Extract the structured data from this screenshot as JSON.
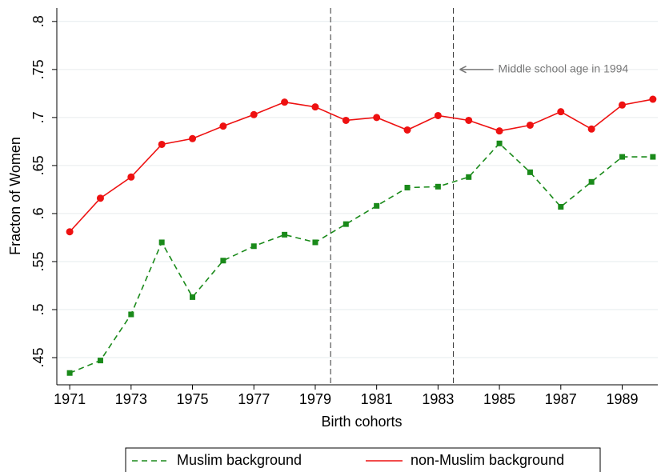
{
  "chart_data": {
    "type": "line",
    "x": [
      1971,
      1972,
      1973,
      1974,
      1975,
      1976,
      1977,
      1978,
      1979,
      1980,
      1981,
      1982,
      1983,
      1984,
      1985,
      1986,
      1987,
      1988,
      1989,
      1990
    ],
    "series": [
      {
        "name": "Muslim background",
        "color": "#1a8a1a",
        "dash": true,
        "marker": "square",
        "values": [
          0.434,
          0.447,
          0.495,
          0.57,
          0.513,
          0.551,
          0.566,
          0.578,
          0.57,
          0.589,
          0.608,
          0.627,
          0.628,
          0.638,
          0.673,
          0.643,
          0.607,
          0.633,
          0.659,
          0.659
        ]
      },
      {
        "name": "non-Muslim background",
        "color": "#ee1111",
        "dash": false,
        "marker": "circle",
        "values": [
          0.581,
          0.616,
          0.638,
          0.672,
          0.678,
          0.691,
          0.703,
          0.716,
          0.711,
          0.697,
          0.7,
          0.687,
          0.702,
          0.697,
          0.686,
          0.692,
          0.706,
          0.688,
          0.713,
          0.719
        ]
      }
    ],
    "x_label": "Birth cohorts",
    "y_label": "Fracton of Women",
    "xlim": [
      1970.58,
      1990.16
    ],
    "ylim": [
      0.4217,
      0.814
    ],
    "xticks": [
      1971,
      1973,
      1975,
      1977,
      1979,
      1981,
      1983,
      1985,
      1987,
      1989
    ],
    "yticks": [
      {
        "value": 0.45,
        "label": ".45"
      },
      {
        "value": 0.5,
        "label": ".5"
      },
      {
        "value": 0.55,
        "label": ".55"
      },
      {
        "value": 0.6,
        "label": ".6"
      },
      {
        "value": 0.65,
        "label": ".65"
      },
      {
        "value": 0.7,
        "label": ".7"
      },
      {
        "value": 0.75,
        "label": ".75"
      },
      {
        "value": 0.8,
        "label": ".8"
      }
    ],
    "vlines": [
      1979.5,
      1983.5
    ],
    "annotation": "Middle school age in 1994",
    "grid": true,
    "legend": "bottom"
  }
}
